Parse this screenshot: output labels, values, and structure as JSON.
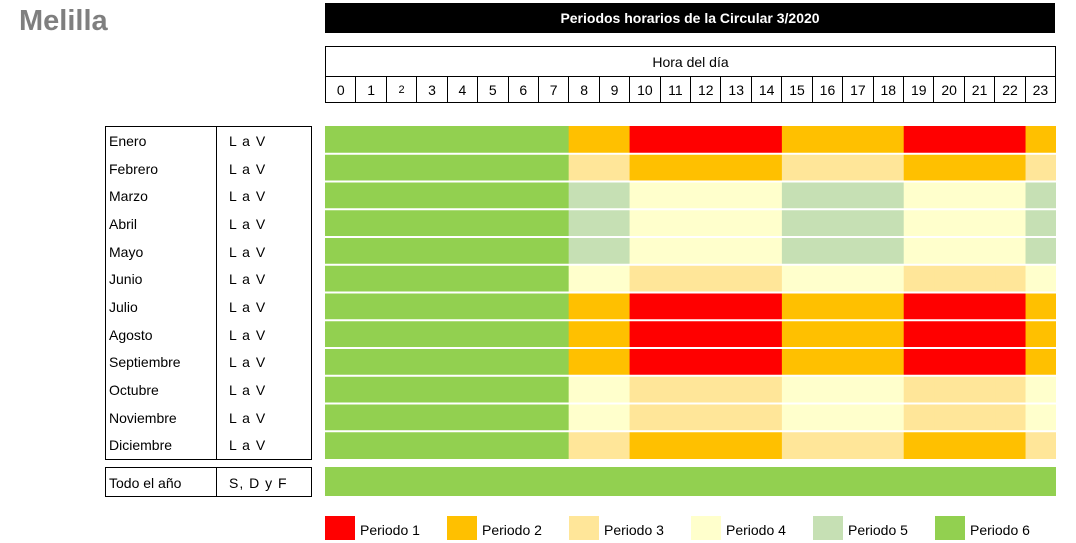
{
  "region_title": "Melilla",
  "chart_title": "Periodos horarios de la Circular 3/2020",
  "hours_caption": "Hora del día",
  "hours": [
    "0",
    "1",
    "2",
    "3",
    "4",
    "5",
    "6",
    "7",
    "8",
    "9",
    "10",
    "11",
    "12",
    "13",
    "14",
    "15",
    "16",
    "17",
    "18",
    "19",
    "20",
    "21",
    "22",
    "23"
  ],
  "colors": {
    "P1": "#ff0000",
    "P2": "#ffc000",
    "P3": "#ffe699",
    "P4": "#ffffcc",
    "P5": "#c6e0b4",
    "P6": "#92d050"
  },
  "chart_data": {
    "type": "heatmap",
    "title": "Periodos horarios de la Circular 3/2020",
    "x_label": "Hora del día",
    "x": [
      "0",
      "1",
      "2",
      "3",
      "4",
      "5",
      "6",
      "7",
      "8",
      "9",
      "10",
      "11",
      "12",
      "13",
      "14",
      "15",
      "16",
      "17",
      "18",
      "19",
      "20",
      "21",
      "22",
      "23"
    ],
    "rows": [
      {
        "month": "Enero",
        "days": "L a V",
        "periods": [
          6,
          6,
          6,
          6,
          6,
          6,
          6,
          6,
          2,
          2,
          1,
          1,
          1,
          1,
          1,
          2,
          2,
          2,
          2,
          1,
          1,
          1,
          1,
          2
        ]
      },
      {
        "month": "Febrero",
        "days": "L a V",
        "periods": [
          6,
          6,
          6,
          6,
          6,
          6,
          6,
          6,
          3,
          3,
          2,
          2,
          2,
          2,
          2,
          3,
          3,
          3,
          3,
          2,
          2,
          2,
          2,
          3
        ]
      },
      {
        "month": "Marzo",
        "days": "L a V",
        "periods": [
          6,
          6,
          6,
          6,
          6,
          6,
          6,
          6,
          5,
          5,
          4,
          4,
          4,
          4,
          4,
          5,
          5,
          5,
          5,
          4,
          4,
          4,
          4,
          5
        ]
      },
      {
        "month": "Abril",
        "days": "L a V",
        "periods": [
          6,
          6,
          6,
          6,
          6,
          6,
          6,
          6,
          5,
          5,
          4,
          4,
          4,
          4,
          4,
          5,
          5,
          5,
          5,
          4,
          4,
          4,
          4,
          5
        ]
      },
      {
        "month": "Mayo",
        "days": "L a V",
        "periods": [
          6,
          6,
          6,
          6,
          6,
          6,
          6,
          6,
          5,
          5,
          4,
          4,
          4,
          4,
          4,
          5,
          5,
          5,
          5,
          4,
          4,
          4,
          4,
          5
        ]
      },
      {
        "month": "Junio",
        "days": "L a V",
        "periods": [
          6,
          6,
          6,
          6,
          6,
          6,
          6,
          6,
          4,
          4,
          3,
          3,
          3,
          3,
          3,
          4,
          4,
          4,
          4,
          3,
          3,
          3,
          3,
          4
        ]
      },
      {
        "month": "Julio",
        "days": "L a V",
        "periods": [
          6,
          6,
          6,
          6,
          6,
          6,
          6,
          6,
          2,
          2,
          1,
          1,
          1,
          1,
          1,
          2,
          2,
          2,
          2,
          1,
          1,
          1,
          1,
          2
        ]
      },
      {
        "month": "Agosto",
        "days": "L a V",
        "periods": [
          6,
          6,
          6,
          6,
          6,
          6,
          6,
          6,
          2,
          2,
          1,
          1,
          1,
          1,
          1,
          2,
          2,
          2,
          2,
          1,
          1,
          1,
          1,
          2
        ]
      },
      {
        "month": "Septiembre",
        "days": "L a V",
        "periods": [
          6,
          6,
          6,
          6,
          6,
          6,
          6,
          6,
          2,
          2,
          1,
          1,
          1,
          1,
          1,
          2,
          2,
          2,
          2,
          1,
          1,
          1,
          1,
          2
        ]
      },
      {
        "month": "Octubre",
        "days": "L a V",
        "periods": [
          6,
          6,
          6,
          6,
          6,
          6,
          6,
          6,
          4,
          4,
          3,
          3,
          3,
          3,
          3,
          4,
          4,
          4,
          4,
          3,
          3,
          3,
          3,
          4
        ]
      },
      {
        "month": "Noviembre",
        "days": "L a V",
        "periods": [
          6,
          6,
          6,
          6,
          6,
          6,
          6,
          6,
          4,
          4,
          3,
          3,
          3,
          3,
          3,
          4,
          4,
          4,
          4,
          3,
          3,
          3,
          3,
          4
        ]
      },
      {
        "month": "Diciembre",
        "days": "L a V",
        "periods": [
          6,
          6,
          6,
          6,
          6,
          6,
          6,
          6,
          3,
          3,
          2,
          2,
          2,
          2,
          2,
          3,
          3,
          3,
          3,
          2,
          2,
          2,
          2,
          3
        ]
      }
    ],
    "all_year": {
      "label": "Todo el año",
      "days": "S, D y F",
      "period": 6
    },
    "legend": [
      {
        "name": "Periodo 1",
        "period": 1
      },
      {
        "name": "Periodo 2",
        "period": 2
      },
      {
        "name": "Periodo 3",
        "period": 3
      },
      {
        "name": "Periodo 4",
        "period": 4
      },
      {
        "name": "Periodo 5",
        "period": 5
      },
      {
        "name": "Periodo 6",
        "period": 6
      }
    ]
  }
}
